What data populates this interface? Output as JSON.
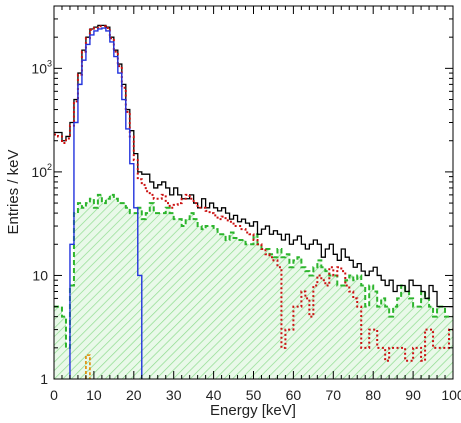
{
  "chart_data": {
    "type": "histogram",
    "xlabel": "Energy [keV]",
    "ylabel": "Entries / keV",
    "xlim": [
      0,
      100
    ],
    "ylim": [
      1,
      4000
    ],
    "yscale": "log",
    "bin_width_keV": 1,
    "grid": false,
    "legend": "none",
    "x_ticks": [
      "0",
      "10",
      "20",
      "30",
      "40",
      "50",
      "60",
      "70",
      "80",
      "90",
      "100"
    ],
    "y_ticks": [
      {
        "base": "1",
        "exp": ""
      },
      {
        "base": "10",
        "exp": ""
      },
      {
        "base": "10",
        "exp": "2"
      },
      {
        "base": "10",
        "exp": "3"
      }
    ],
    "series": [
      {
        "style": "solid-black",
        "color": "#000000",
        "x_start": 0,
        "values": [
          240,
          240,
          200,
          220,
          300,
          500,
          900,
          1500,
          2000,
          2400,
          2500,
          2600,
          2600,
          2500,
          2000,
          1500,
          1100,
          700,
          400,
          250,
          150,
          100,
          95,
          95,
          80,
          70,
          75,
          80,
          70,
          60,
          70,
          60,
          55,
          55,
          60,
          50,
          45,
          55,
          45,
          50,
          45,
          42,
          45,
          40,
          35,
          38,
          33,
          35,
          32,
          30,
          33,
          25,
          28,
          30,
          25,
          27,
          25,
          22,
          25,
          20,
          22,
          24,
          20,
          18,
          20,
          22,
          20,
          15,
          18,
          20,
          16,
          14,
          18,
          15,
          14,
          12,
          13,
          11,
          10,
          11,
          12,
          10,
          9,
          8,
          9,
          7,
          8,
          8,
          7,
          9,
          8,
          8,
          7,
          6,
          8,
          7,
          5,
          5,
          5,
          5
        ]
      },
      {
        "style": "dotted-red",
        "color": "#cc1111",
        "x_start": 0,
        "values": [
          230,
          220,
          190,
          210,
          280,
          480,
          870,
          1450,
          1950,
          2350,
          2450,
          2550,
          2550,
          2450,
          1950,
          1450,
          1050,
          650,
          380,
          220,
          130,
          85,
          75,
          65,
          60,
          55,
          55,
          60,
          50,
          45,
          48,
          50,
          55,
          60,
          55,
          50,
          45,
          45,
          42,
          40,
          38,
          35,
          37,
          34,
          33,
          30,
          30,
          28,
          26,
          25,
          22,
          20,
          18,
          16,
          15,
          14,
          12,
          2,
          3,
          3,
          5,
          5,
          7,
          6,
          4,
          8,
          10,
          9,
          8,
          12,
          10,
          12,
          11,
          8,
          7,
          6,
          5,
          2,
          2,
          3,
          3,
          2,
          2,
          1.5,
          2,
          2,
          2,
          2,
          1.5,
          1.5,
          2,
          2,
          1.5,
          3,
          3,
          2,
          2,
          2,
          2,
          3
        ]
      },
      {
        "style": "dashed-green",
        "color": "#2db52d",
        "x_start": 0,
        "values": [
          5,
          5,
          4,
          2,
          8,
          40,
          50,
          45,
          50,
          55,
          45,
          60,
          50,
          55,
          60,
          55,
          50,
          50,
          45,
          40,
          40,
          45,
          35,
          40,
          50,
          40,
          40,
          40,
          45,
          40,
          35,
          35,
          30,
          35,
          40,
          35,
          30,
          28,
          30,
          30,
          28,
          25,
          25,
          22,
          26,
          23,
          22,
          22,
          20,
          20,
          25,
          20,
          18,
          18,
          16,
          15,
          18,
          15,
          16,
          12,
          14,
          15,
          12,
          11,
          10,
          12,
          14,
          12,
          11,
          10,
          10,
          8,
          8,
          9,
          10,
          9,
          10,
          8,
          5,
          8,
          7,
          5,
          6,
          5,
          4,
          5,
          6,
          8,
          7,
          6,
          5,
          5,
          7,
          6,
          5,
          4,
          5,
          5,
          4,
          4
        ]
      },
      {
        "style": "solid-blue",
        "color": "#2233dd",
        "x_start": 0,
        "values": [
          0,
          0,
          0,
          0,
          20,
          300,
          700,
          1200,
          1700,
          2100,
          2300,
          2400,
          2450,
          2300,
          1800,
          1300,
          900,
          500,
          260,
          120,
          45,
          10,
          0,
          0,
          0,
          0,
          0,
          0,
          0,
          0,
          0,
          0,
          0,
          0,
          0,
          0,
          0,
          0,
          0,
          0,
          0,
          0,
          0,
          0,
          0,
          0,
          0,
          0,
          0,
          0,
          0,
          0,
          0,
          0,
          0,
          0,
          0,
          0,
          0,
          0,
          0,
          0,
          0,
          0,
          0,
          0,
          0,
          0,
          0,
          0,
          0,
          0,
          0,
          0,
          0,
          0,
          0,
          0,
          0,
          0,
          0,
          0,
          0,
          0,
          0,
          0,
          0,
          0,
          0,
          0,
          0,
          0,
          0,
          0,
          0,
          0,
          0,
          0,
          0,
          0
        ]
      },
      {
        "style": "dashed-orange",
        "color": "#e08a00",
        "x_start": 8,
        "values": [
          1.7
        ]
      }
    ],
    "fill": {
      "color": "#9fe09f",
      "pattern": "diagonal-hatch",
      "under_series": "dashed-green"
    }
  }
}
